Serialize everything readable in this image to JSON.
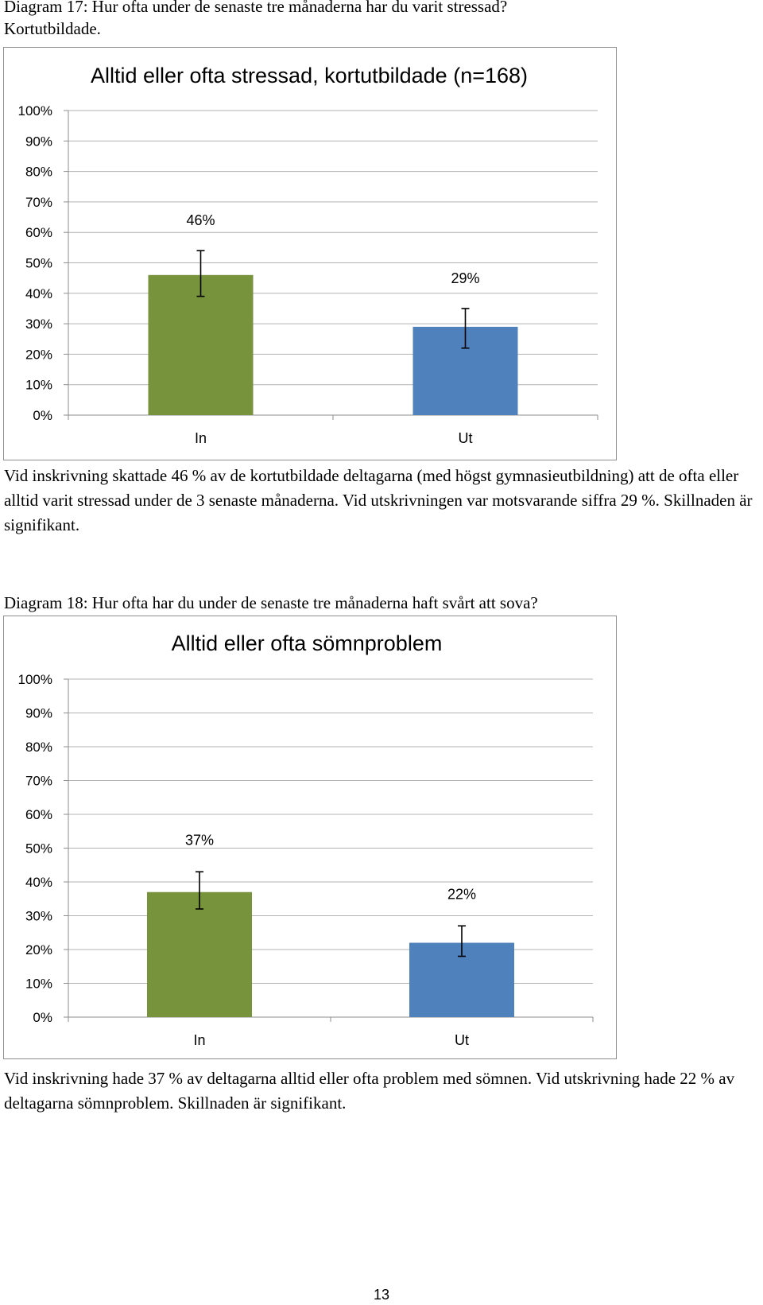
{
  "section1": {
    "caption_line1": "Diagram 17: Hur ofta under de senaste tre månaderna har du varit stressad?",
    "caption_line2": "Kortutbildade.",
    "text": "Vid inskrivning skattade 46 % av de kortutbildade deltagarna (med högst gymnasieutbildning) att de ofta eller alltid varit stressad under de 3 senaste månaderna. Vid utskrivningen var motsvarande siffra 29 %. Skillnaden är signifikant."
  },
  "section2": {
    "caption": "Diagram 18: Hur ofta har du under de senaste tre månaderna haft svårt att sova?",
    "text": "Vid inskrivning hade 37 % av deltagarna alltid eller ofta problem med sömnen. Vid utskrivning hade 22 % av deltagarna sömnproblem. Skillnaden är signifikant."
  },
  "page_number": "13",
  "colors": {
    "in_bar": "#77933c",
    "ut_bar": "#4f81bd",
    "grid": "#b3b3b3",
    "axis": "#8e8e8e",
    "frame": "#8e8e8e"
  },
  "chart_data": [
    {
      "type": "bar",
      "title": "Alltid eller ofta stressad, kortutbildade (n=168)",
      "categories": [
        "In",
        "Ut"
      ],
      "values": [
        46,
        29
      ],
      "data_labels": [
        "46%",
        "29%"
      ],
      "error_bars": [
        [
          39,
          54
        ],
        [
          22,
          35
        ]
      ],
      "bar_colors": [
        "#77933c",
        "#4f81bd"
      ],
      "ylim": [
        0,
        100
      ],
      "yticks": [
        "0%",
        "10%",
        "20%",
        "30%",
        "40%",
        "50%",
        "60%",
        "70%",
        "80%",
        "90%",
        "100%"
      ],
      "xlabel": "",
      "ylabel": "",
      "grid": true
    },
    {
      "type": "bar",
      "title": "Alltid eller ofta sömnproblem",
      "categories": [
        "In",
        "Ut"
      ],
      "values": [
        37,
        22
      ],
      "data_labels": [
        "37%",
        "22%"
      ],
      "error_bars": [
        [
          32,
          43
        ],
        [
          18,
          27
        ]
      ],
      "bar_colors": [
        "#77933c",
        "#4f81bd"
      ],
      "ylim": [
        0,
        100
      ],
      "yticks": [
        "0%",
        "10%",
        "20%",
        "30%",
        "40%",
        "50%",
        "60%",
        "70%",
        "80%",
        "90%",
        "100%"
      ],
      "xlabel": "",
      "ylabel": "",
      "grid": true
    }
  ]
}
